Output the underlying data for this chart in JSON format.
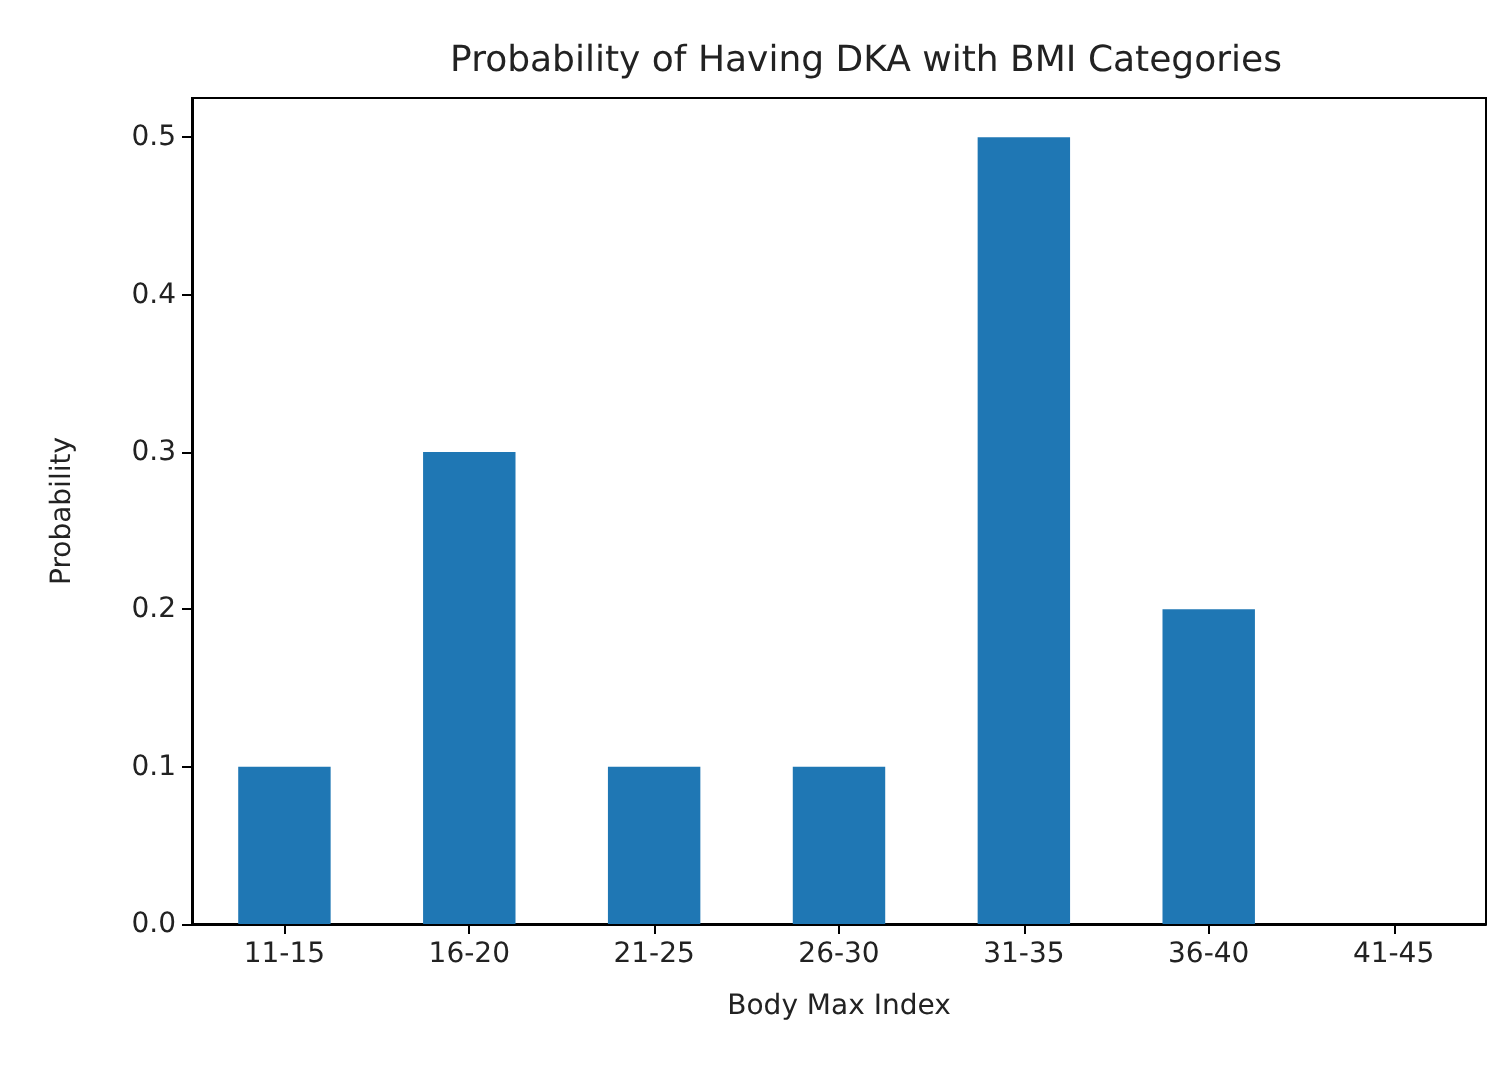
{
  "chart_data": {
    "type": "bar",
    "title": "Probability of Having DKA with BMI Categories",
    "xlabel": "Body Max Index",
    "ylabel": "Probability",
    "categories": [
      "11-15",
      "16-20",
      "21-25",
      "26-30",
      "31-35",
      "36-40",
      "41-45"
    ],
    "values": [
      0.1,
      0.3,
      0.1,
      0.1,
      0.5,
      0.2,
      0
    ],
    "color": "#1f77b4",
    "ylim": [
      0,
      0.525
    ],
    "yticks": [
      {
        "value": 0,
        "label": "0.0"
      },
      0.1,
      0.2,
      0.3,
      0.4,
      0.5
    ],
    "grid": false
  }
}
